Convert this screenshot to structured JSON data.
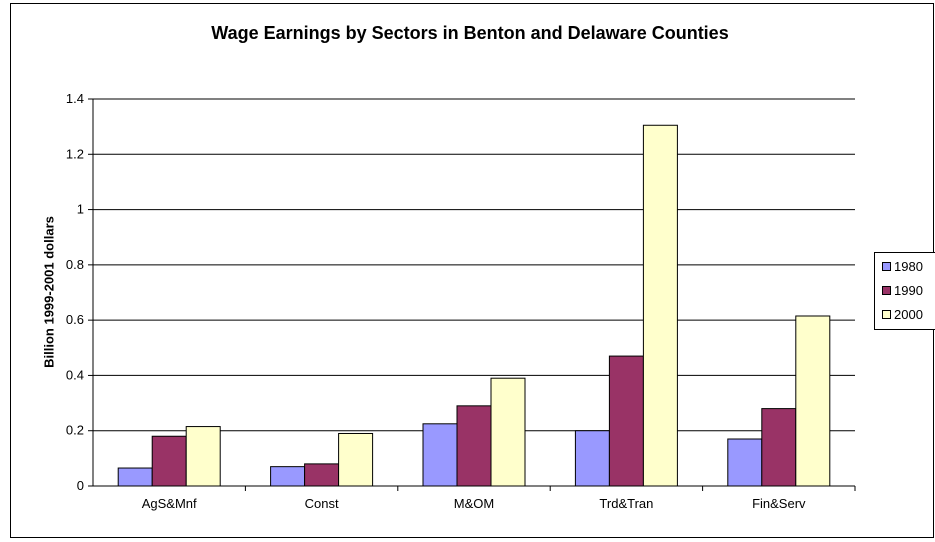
{
  "chart_data": {
    "type": "bar",
    "title": "Wage Earnings by Sectors in Benton and Delaware Counties",
    "ylabel": "Billion 1999-2001 dollars",
    "xlabel": "",
    "ylim": [
      0,
      1.4
    ],
    "yticks": [
      "0",
      "0.2",
      "0.4",
      "0.6",
      "0.8",
      "1",
      "1.2",
      "1.4"
    ],
    "categories": [
      "AgS&Mnf",
      "Const",
      "M&OM",
      "Trd&Tran",
      "Fin&Serv"
    ],
    "series": [
      {
        "name": "1980",
        "color": "#9999FF",
        "values": [
          0.065,
          0.07,
          0.225,
          0.2,
          0.17
        ]
      },
      {
        "name": "1990",
        "color": "#993366",
        "values": [
          0.18,
          0.08,
          0.29,
          0.47,
          0.28
        ]
      },
      {
        "name": "2000",
        "color": "#FFFFCC",
        "values": [
          0.215,
          0.19,
          0.39,
          1.305,
          0.615
        ]
      }
    ],
    "grid": true,
    "legend_position": "right"
  }
}
